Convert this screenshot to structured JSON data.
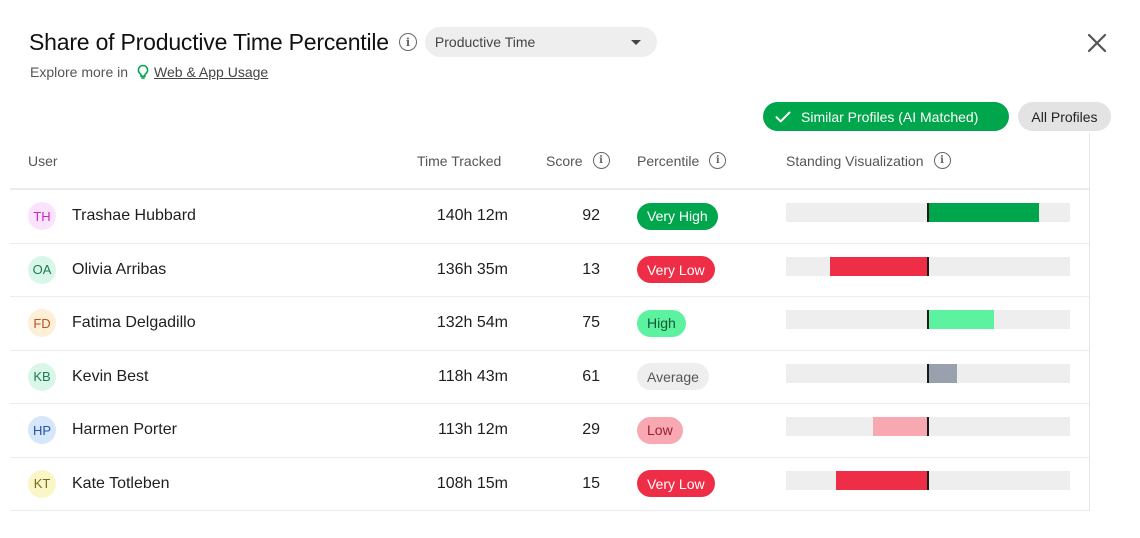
{
  "header": {
    "title": "Share of Productive Time Percentile",
    "metric_select": {
      "value": "Productive Time"
    },
    "explore_prefix": "Explore more in",
    "explore_link": "Web & App Usage"
  },
  "filters": {
    "similar_label": "Similar Profiles (AI Matched)",
    "all_label": "All Profiles",
    "active": "similar"
  },
  "columns": {
    "user": "User",
    "time": "Time Tracked",
    "score": "Score",
    "percentile": "Percentile",
    "standing": "Standing Visualization"
  },
  "colors": {
    "very_high": "#00a64b",
    "high": "#5cf2a0",
    "average": "#9aa1ae",
    "low": "#f7a8b0",
    "very_low": "#ee2d46"
  },
  "rows": [
    {
      "initials": "TH",
      "name": "Trashae Hubbard",
      "time": "140h 12m",
      "score": "92",
      "percentile": "Very High",
      "level": "very_high",
      "avatar_bg": "#fbe3fb",
      "avatar_fg": "#c02cc4",
      "standing": 92
    },
    {
      "initials": "OA",
      "name": "Olivia Arribas",
      "time": "136h 35m",
      "score": "13",
      "percentile": "Very Low",
      "level": "very_low",
      "avatar_bg": "#d8f7e8",
      "avatar_fg": "#1f7a52",
      "standing": 13
    },
    {
      "initials": "FD",
      "name": "Fatima Delgadillo",
      "time": "132h 54m",
      "score": "75",
      "percentile": "High",
      "level": "high",
      "avatar_bg": "#fdefd8",
      "avatar_fg": "#b5541e",
      "standing": 75
    },
    {
      "initials": "KB",
      "name": "Kevin Best",
      "time": "118h 43m",
      "score": "61",
      "percentile": "Average",
      "level": "average",
      "avatar_bg": "#d8f7e8",
      "avatar_fg": "#1f7a52",
      "standing": 61
    },
    {
      "initials": "HP",
      "name": "Harmen Porter",
      "time": "113h 12m",
      "score": "29",
      "percentile": "Low",
      "level": "low",
      "avatar_bg": "#d6e6fb",
      "avatar_fg": "#2453a8",
      "standing": 29
    },
    {
      "initials": "KT",
      "name": "Kate Totleben",
      "time": "108h 15m",
      "score": "15",
      "percentile": "Very Low",
      "level": "very_low",
      "avatar_bg": "#fbf6c8",
      "avatar_fg": "#7a6a12",
      "standing": 15
    }
  ]
}
